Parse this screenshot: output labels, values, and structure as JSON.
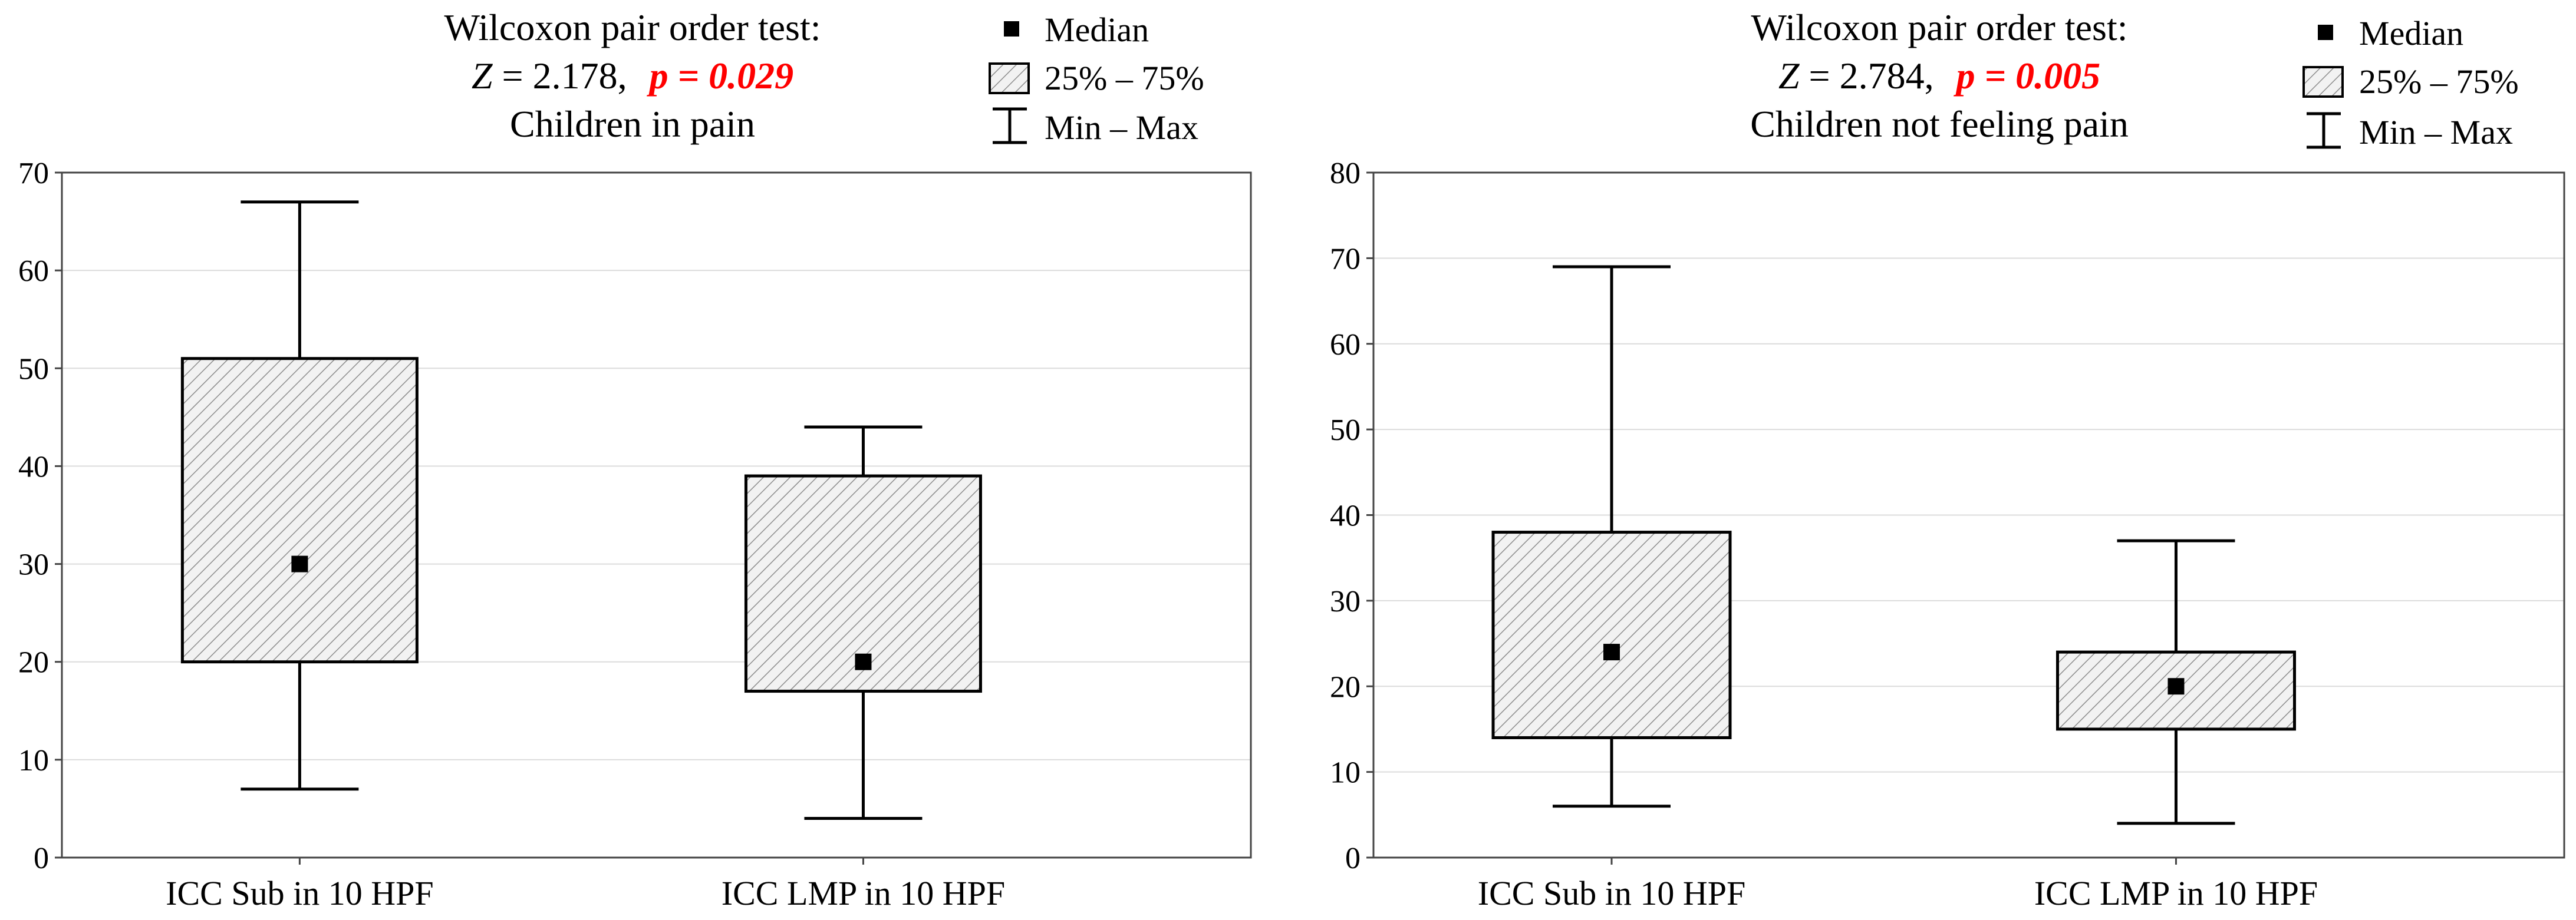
{
  "colors": {
    "highlight": "#ff0000",
    "hatch_line": "#8c8c8c",
    "box_fill": "#f2f2f2"
  },
  "legend": {
    "median": "Median",
    "iqr": "25% – 75%",
    "range": "Min – Max"
  },
  "chart_data": [
    {
      "type": "boxplot",
      "title": "Children in pain",
      "test_label": "Wilcoxon pair order test:",
      "z_prefix": "Z",
      "z_value": "= 2.178,",
      "p_text": "p = 0.029",
      "ylim": [
        0,
        70
      ],
      "yticks": [
        0,
        10,
        20,
        30,
        40,
        50,
        60,
        70
      ],
      "categories": [
        "ICC Sub in 10 HPF",
        "ICC LMP in 10 HPF"
      ],
      "boxes": [
        {
          "min": 7,
          "q1": 20,
          "median": 30,
          "q3": 51,
          "max": 67
        },
        {
          "min": 4,
          "q1": 17,
          "median": 20,
          "q3": 39,
          "max": 44
        }
      ]
    },
    {
      "type": "boxplot",
      "title": "Children not feeling pain",
      "test_label": "Wilcoxon pair order test:",
      "z_prefix": "Z",
      "z_value": "= 2.784,",
      "p_text": "p = 0.005",
      "ylim": [
        0,
        80
      ],
      "yticks": [
        0,
        10,
        20,
        30,
        40,
        50,
        60,
        70,
        80
      ],
      "categories": [
        "ICC Sub in 10 HPF",
        "ICC LMP in 10 HPF"
      ],
      "boxes": [
        {
          "min": 6,
          "q1": 14,
          "median": 24,
          "q3": 38,
          "max": 69
        },
        {
          "min": 4,
          "q1": 15,
          "median": 20,
          "q3": 24,
          "max": 37
        }
      ]
    }
  ]
}
